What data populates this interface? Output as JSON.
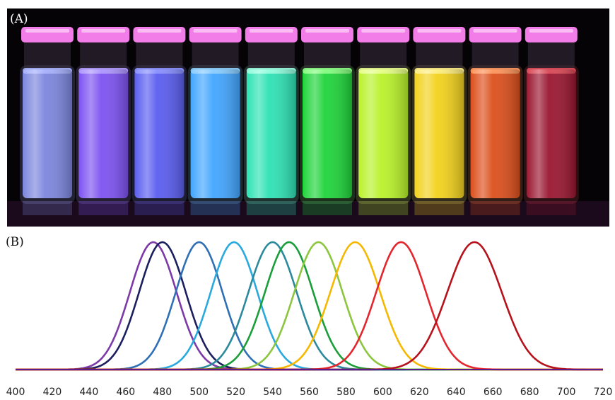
{
  "panels": {
    "a_label": "(A)",
    "b_label": "(B)"
  },
  "vials": [
    {
      "liquid": "#7c86dd",
      "glow": "#aab4ff"
    },
    {
      "liquid": "#7d52f2",
      "glow": "#b39cff"
    },
    {
      "liquid": "#5a5df0",
      "glow": "#8c93ff"
    },
    {
      "liquid": "#42a6ff",
      "glow": "#8fd0ff"
    },
    {
      "liquid": "#2ee2b4",
      "glow": "#9bffe0"
    },
    {
      "liquid": "#1fd43a",
      "glow": "#8dff86"
    },
    {
      "liquid": "#b9f22a",
      "glow": "#eaff90"
    },
    {
      "liquid": "#f2d21c",
      "glow": "#fff08a"
    },
    {
      "liquid": "#dc4f1c",
      "glow": "#ff9a60"
    },
    {
      "liquid": "#9a1630",
      "glow": "#e04d5a"
    }
  ],
  "vial_cap_color": "#f27de8",
  "chart_data": {
    "type": "line",
    "xlabel": "",
    "ylabel": "",
    "xlim": [
      400,
      720
    ],
    "x_ticks": [
      "400",
      "420",
      "440",
      "460",
      "480",
      "500",
      "520",
      "540",
      "560",
      "580",
      "600",
      "620",
      "640",
      "660",
      "680",
      "700",
      "720"
    ],
    "grid": false,
    "legend": "none",
    "series": [
      {
        "peak_nm": 475,
        "fwhm_nm": 30,
        "color": "#7b3aa8"
      },
      {
        "peak_nm": 480,
        "fwhm_nm": 30,
        "color": "#1b1f5e"
      },
      {
        "peak_nm": 500,
        "fwhm_nm": 30,
        "color": "#2e6fb5"
      },
      {
        "peak_nm": 519,
        "fwhm_nm": 30,
        "color": "#29a9de"
      },
      {
        "peak_nm": 540,
        "fwhm_nm": 31,
        "color": "#2a8a9c"
      },
      {
        "peak_nm": 549,
        "fwhm_nm": 31,
        "color": "#1a9e3a"
      },
      {
        "peak_nm": 565,
        "fwhm_nm": 31,
        "color": "#8cc63e"
      },
      {
        "peak_nm": 585,
        "fwhm_nm": 32,
        "color": "#f5b800"
      },
      {
        "peak_nm": 610,
        "fwhm_nm": 32,
        "color": "#e3262d"
      },
      {
        "peak_nm": 650,
        "fwhm_nm": 35,
        "color": "#b5121b"
      }
    ]
  }
}
